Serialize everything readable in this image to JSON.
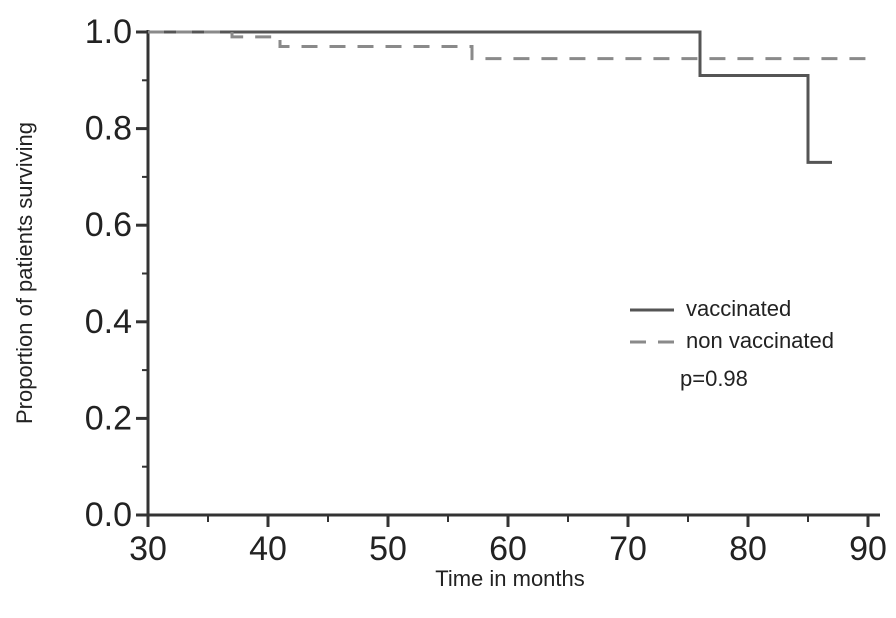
{
  "chart_data": {
    "type": "line",
    "x_label": "Time in months",
    "y_label": "Proportion of patients surviving",
    "series": [
      {
        "name": "vaccinated",
        "color": "#555555",
        "dash": "solid",
        "x": [
          30,
          76,
          76,
          85,
          85,
          87
        ],
        "values": [
          1,
          1,
          0.91,
          0.91,
          0.73,
          0.73
        ]
      },
      {
        "name": "non vaccinated",
        "color": "#8a8a8a",
        "dash": "dashed",
        "x": [
          30,
          37,
          37,
          41,
          41,
          57,
          57,
          90.7
        ],
        "values": [
          1,
          1,
          0.99,
          0.99,
          0.97,
          0.97,
          0.945,
          0.945
        ]
      }
    ],
    "annotation": "p=0.98",
    "xlim": [
      30,
      91
    ],
    "ylim": [
      0,
      1
    ],
    "xticks": [
      30,
      40,
      50,
      60,
      70,
      80,
      90
    ],
    "xminorticks": [
      35,
      45,
      55,
      65,
      75,
      85
    ],
    "yticks": [
      {
        "value": 0,
        "label": "0.0"
      },
      0.2,
      0.4,
      0.6,
      0.8,
      {
        "value": 1,
        "label": "1.0"
      }
    ],
    "yminorticks": [
      0.1,
      0.3,
      0.5,
      0.7,
      0.9
    ],
    "legend": "right"
  }
}
